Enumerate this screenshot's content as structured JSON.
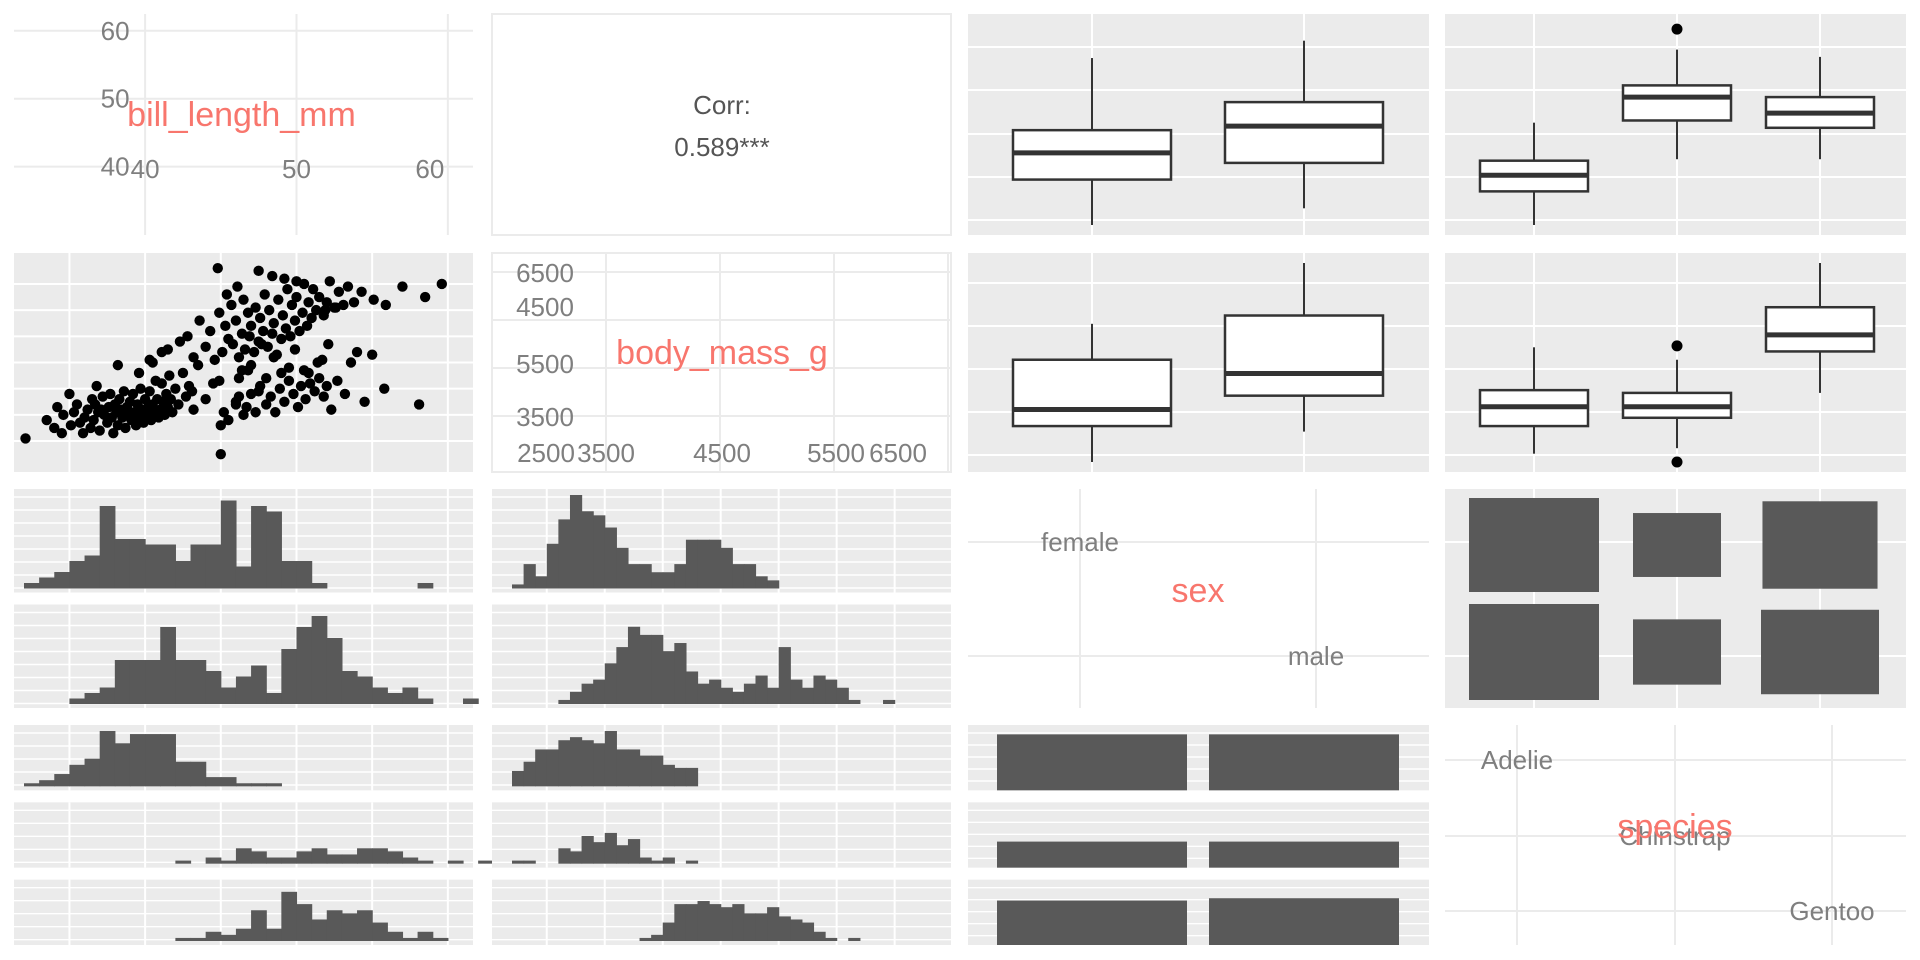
{
  "colors": {
    "panel_bg": "#EBEBEB",
    "grid": "#FFFFFF",
    "diag_bg": "#FFFFFF",
    "diag_grid": "#EBEBEB",
    "diag_label": "#F8766D",
    "tick_text": "#7F7F7F",
    "bar": "#595959",
    "box": "#333333"
  },
  "chart_data": {
    "type": "pairs",
    "variables": [
      "bill_length_mm",
      "body_mass_g",
      "sex",
      "species"
    ],
    "diag_labels": {
      "bill_length_mm": "bill_length_mm",
      "body_mass_g": "body_mass_g",
      "sex": "sex",
      "species": "species"
    },
    "bill_length_axis": {
      "range": [
        32,
        61
      ],
      "left_ticks": [
        "40",
        "50",
        "60"
      ],
      "bottom_ticks": [
        "40",
        "50",
        "60"
      ]
    },
    "body_mass_axis": {
      "range": [
        2500,
        6500
      ],
      "left_ticks": [
        "3500",
        "4500",
        "5500",
        "6500"
      ],
      "bottom_ticks": [
        "2500",
        "3500",
        "4500",
        "5500",
        "6500"
      ]
    },
    "sex_levels": [
      "female",
      "male"
    ],
    "species_levels": [
      "Adelie",
      "Chinstrap",
      "Gentoo"
    ],
    "correlation": {
      "label": "Corr:",
      "value": "0.589***"
    },
    "scatter_points": [
      [
        32.1,
        3050
      ],
      [
        33.5,
        3400
      ],
      [
        34.0,
        3250
      ],
      [
        34.5,
        3150
      ],
      [
        34.6,
        3500
      ],
      [
        35.0,
        3900
      ],
      [
        35.1,
        3300
      ],
      [
        35.3,
        3550
      ],
      [
        35.5,
        3700
      ],
      [
        35.7,
        3350
      ],
      [
        35.9,
        3150
      ],
      [
        36.0,
        3450
      ],
      [
        36.2,
        3600
      ],
      [
        36.4,
        3250
      ],
      [
        36.5,
        3800
      ],
      [
        36.6,
        3400
      ],
      [
        36.7,
        3700
      ],
      [
        36.9,
        3550
      ],
      [
        37.0,
        3200
      ],
      [
        37.1,
        3600
      ],
      [
        37.2,
        3850
      ],
      [
        37.3,
        3500
      ],
      [
        37.5,
        3350
      ],
      [
        37.6,
        3650
      ],
      [
        37.7,
        3900
      ],
      [
        37.8,
        3450
      ],
      [
        37.9,
        3150
      ],
      [
        38.0,
        3700
      ],
      [
        38.1,
        3550
      ],
      [
        38.2,
        3300
      ],
      [
        38.3,
        3800
      ],
      [
        38.4,
        3600
      ],
      [
        38.5,
        3450
      ],
      [
        38.6,
        3950
      ],
      [
        38.7,
        3250
      ],
      [
        38.8,
        3650
      ],
      [
        38.9,
        3500
      ],
      [
        39.0,
        3750
      ],
      [
        39.1,
        3400
      ],
      [
        39.2,
        3900
      ],
      [
        39.3,
        3550
      ],
      [
        39.4,
        3300
      ],
      [
        39.5,
        3700
      ],
      [
        39.6,
        3450
      ],
      [
        39.7,
        4000
      ],
      [
        39.8,
        3600
      ],
      [
        39.9,
        3350
      ],
      [
        40.0,
        3800
      ],
      [
        40.1,
        3500
      ],
      [
        40.2,
        3650
      ],
      [
        40.3,
        3950
      ],
      [
        40.4,
        3400
      ],
      [
        40.5,
        3700
      ],
      [
        40.6,
        3550
      ],
      [
        40.7,
        4150
      ],
      [
        40.8,
        3800
      ],
      [
        40.9,
        3450
      ],
      [
        41.0,
        3600
      ],
      [
        41.1,
        4100
      ],
      [
        41.2,
        3750
      ],
      [
        41.3,
        3500
      ],
      [
        41.4,
        3900
      ],
      [
        41.5,
        3650
      ],
      [
        41.6,
        4250
      ],
      [
        41.7,
        3800
      ],
      [
        41.8,
        3550
      ],
      [
        42.0,
        4000
      ],
      [
        42.2,
        3700
      ],
      [
        42.5,
        4300
      ],
      [
        42.7,
        3850
      ],
      [
        42.9,
        4050
      ],
      [
        43.2,
        3600
      ],
      [
        43.5,
        4450
      ],
      [
        34.2,
        3650
      ],
      [
        36.8,
        4050
      ],
      [
        39.6,
        4300
      ],
      [
        38.2,
        4450
      ],
      [
        40.3,
        4550
      ],
      [
        41.1,
        4700
      ],
      [
        45.0,
        3300
      ],
      [
        43.1,
        3950
      ],
      [
        44.0,
        3800
      ],
      [
        45.2,
        3550
      ],
      [
        45.5,
        3400
      ],
      [
        46.0,
        3700
      ],
      [
        46.2,
        3850
      ],
      [
        46.5,
        3500
      ],
      [
        46.7,
        3650
      ],
      [
        47.0,
        3900
      ],
      [
        47.3,
        3550
      ],
      [
        47.6,
        4050
      ],
      [
        48.0,
        3700
      ],
      [
        48.3,
        3850
      ],
      [
        48.6,
        3550
      ],
      [
        48.9,
        4000
      ],
      [
        49.2,
        3750
      ],
      [
        49.5,
        4150
      ],
      [
        49.8,
        3900
      ],
      [
        50.1,
        3650
      ],
      [
        50.3,
        4050
      ],
      [
        50.6,
        3800
      ],
      [
        50.9,
        4100
      ],
      [
        51.2,
        3950
      ],
      [
        51.5,
        4200
      ],
      [
        51.8,
        3850
      ],
      [
        52.0,
        4050
      ],
      [
        52.3,
        3600
      ],
      [
        52.7,
        4150
      ],
      [
        53.2,
        3900
      ],
      [
        54.5,
        3750
      ],
      [
        55.8,
        4000
      ],
      [
        58.1,
        3700
      ],
      [
        46.0,
        3750
      ],
      [
        47.5,
        3950
      ],
      [
        49.0,
        4300
      ],
      [
        50.5,
        4350
      ],
      [
        48.0,
        4200
      ],
      [
        44.5,
        4100
      ],
      [
        46.8,
        4350
      ],
      [
        51.4,
        4500
      ],
      [
        45.0,
        2750
      ],
      [
        40.5,
        4500
      ],
      [
        41.5,
        4750
      ],
      [
        42.3,
        4900
      ],
      [
        42.8,
        5000
      ],
      [
        43.2,
        4600
      ],
      [
        43.6,
        5300
      ],
      [
        44.0,
        4800
      ],
      [
        44.3,
        5100
      ],
      [
        44.6,
        4550
      ],
      [
        44.9,
        5450
      ],
      [
        45.1,
        4700
      ],
      [
        45.3,
        5200
      ],
      [
        45.5,
        4950
      ],
      [
        45.7,
        5600
      ],
      [
        45.8,
        4850
      ],
      [
        46.0,
        5300
      ],
      [
        46.2,
        4600
      ],
      [
        46.4,
        5050
      ],
      [
        46.5,
        5700
      ],
      [
        46.6,
        4750
      ],
      [
        46.8,
        5450
      ],
      [
        46.9,
        5000
      ],
      [
        47.0,
        5200
      ],
      [
        47.2,
        4700
      ],
      [
        47.3,
        5550
      ],
      [
        47.5,
        4900
      ],
      [
        47.6,
        5350
      ],
      [
        47.8,
        5100
      ],
      [
        47.9,
        5800
      ],
      [
        48.1,
        4800
      ],
      [
        48.2,
        5500
      ],
      [
        48.4,
        5050
      ],
      [
        48.5,
        5250
      ],
      [
        48.7,
        4650
      ],
      [
        48.8,
        5700
      ],
      [
        49.0,
        4950
      ],
      [
        49.1,
        5400
      ],
      [
        49.3,
        5150
      ],
      [
        49.4,
        5900
      ],
      [
        49.6,
        5000
      ],
      [
        49.7,
        5600
      ],
      [
        49.9,
        5300
      ],
      [
        50.0,
        5750
      ],
      [
        50.2,
        5100
      ],
      [
        50.4,
        5450
      ],
      [
        50.5,
        6000
      ],
      [
        50.7,
        5200
      ],
      [
        50.8,
        5650
      ],
      [
        51.0,
        5350
      ],
      [
        51.1,
        5900
      ],
      [
        51.3,
        5500
      ],
      [
        51.5,
        5750
      ],
      [
        51.8,
        5400
      ],
      [
        52.0,
        5650
      ],
      [
        52.2,
        6050
      ],
      [
        52.5,
        5550
      ],
      [
        52.8,
        5850
      ],
      [
        53.1,
        5600
      ],
      [
        53.4,
        5950
      ],
      [
        53.8,
        5650
      ],
      [
        54.3,
        5850
      ],
      [
        55.1,
        5700
      ],
      [
        55.9,
        5600
      ],
      [
        57.0,
        5950
      ],
      [
        58.5,
        5750
      ],
      [
        59.6,
        6000
      ],
      [
        44.8,
        6300
      ],
      [
        47.5,
        6250
      ],
      [
        48.4,
        6150
      ],
      [
        49.2,
        6100
      ],
      [
        50.0,
        6050
      ],
      [
        52.6,
        5550
      ],
      [
        51.9,
        5500
      ],
      [
        45.4,
        5800
      ],
      [
        46.1,
        5950
      ],
      [
        54.0,
        4700
      ],
      [
        55.0,
        4650
      ],
      [
        49.5,
        4400
      ],
      [
        48.5,
        4600
      ],
      [
        47.0,
        4450
      ],
      [
        46.4,
        4350
      ],
      [
        51.7,
        4550
      ],
      [
        53.6,
        4500
      ],
      [
        50.8,
        4300
      ],
      [
        52.1,
        4850
      ],
      [
        49.9,
        4750
      ],
      [
        47.7,
        4850
      ],
      [
        46.2,
        4200
      ],
      [
        44.9,
        4150
      ]
    ],
    "box_bill_by_sex": [
      {
        "group": "female",
        "whisker_low": 32,
        "q1": 38.8,
        "median": 42.8,
        "q3": 46.2,
        "whisker_high": 57
      },
      {
        "group": "male",
        "whisker_low": 34.5,
        "q1": 41.3,
        "median": 46.8,
        "q3": 50.4,
        "whisker_high": 59.6
      }
    ],
    "box_bill_by_species": [
      {
        "group": "Adelie",
        "whisker_low": 32,
        "q1": 36.6,
        "median": 38.8,
        "q3": 40.8,
        "whisker_high": 46,
        "outliers": []
      },
      {
        "group": "Chinstrap",
        "whisker_low": 41,
        "q1": 46.3,
        "median": 49.5,
        "q3": 51.1,
        "whisker_high": 56,
        "outliers": [
          58.8
        ]
      },
      {
        "group": "Gentoo",
        "whisker_low": 41,
        "q1": 45.3,
        "median": 47.3,
        "q3": 49.5,
        "whisker_high": 55,
        "outliers": []
      }
    ],
    "box_mass_by_sex": [
      {
        "group": "female",
        "whisker_low": 2700,
        "q1": 3350,
        "median": 3650,
        "q3": 4550,
        "whisker_high": 5200
      },
      {
        "group": "male",
        "whisker_low": 3250,
        "q1": 3900,
        "median": 4300,
        "q3": 5350,
        "whisker_high": 6300
      }
    ],
    "box_mass_by_species": [
      {
        "group": "Adelie",
        "whisker_low": 2850,
        "q1": 3350,
        "median": 3700,
        "q3": 4000,
        "whisker_high": 4775,
        "outliers": []
      },
      {
        "group": "Chinstrap",
        "whisker_low": 2950,
        "q1": 3500,
        "median": 3700,
        "q3": 3950,
        "whisker_high": 4550,
        "outliers": [
          4800,
          2700
        ]
      },
      {
        "group": "Gentoo",
        "whisker_low": 3950,
        "q1": 4700,
        "median": 5000,
        "q3": 5500,
        "whisker_high": 6300,
        "outliers": []
      }
    ],
    "hist_bill_by_sex": {
      "bins_from": 32,
      "bin_width": 1,
      "female": [
        1,
        2,
        3,
        5,
        6,
        15,
        9,
        9,
        8,
        8,
        5,
        8,
        8,
        16,
        4,
        15,
        14,
        5,
        5,
        1,
        0,
        0,
        0,
        0,
        0,
        0,
        1,
        0,
        0
      ],
      "male": [
        0,
        0,
        0,
        1,
        2,
        3,
        8,
        8,
        8,
        14,
        8,
        8,
        6,
        3,
        5,
        7,
        2,
        10,
        14,
        16,
        12,
        6,
        5,
        3,
        2,
        3,
        1,
        0,
        0,
        1
      ]
    },
    "hist_mass_by_sex": {
      "bins_from": 2700,
      "bin_width": 100,
      "female": [
        1,
        6,
        3,
        11,
        17,
        23,
        19,
        18,
        15,
        10,
        6,
        6,
        4,
        4,
        6,
        12,
        12,
        12,
        10,
        6,
        6,
        3,
        2
      ],
      "male": [
        0,
        0,
        0,
        0,
        1,
        3,
        5,
        6,
        10,
        14,
        19,
        17,
        17,
        13,
        15,
        8,
        5,
        6,
        4,
        3,
        5,
        7,
        4,
        14,
        6,
        4,
        7,
        6,
        4,
        1,
        0,
        0,
        1
      ]
    },
    "hist_bill_by_species": {
      "bins_from": 32,
      "bin_width": 1,
      "Adelie": [
        1,
        2,
        4,
        7,
        9,
        18,
        14,
        17,
        17,
        17,
        8,
        8,
        3,
        3,
        1,
        1,
        1,
        0,
        0,
        0,
        0,
        0,
        0,
        0,
        0,
        0,
        0,
        0,
        0
      ],
      "Chinstrap": [
        0,
        0,
        0,
        0,
        0,
        0,
        0,
        0,
        0,
        0,
        1,
        0,
        2,
        1,
        5,
        4,
        2,
        2,
        4,
        5,
        3,
        3,
        5,
        5,
        4,
        2,
        1,
        0,
        1,
        0,
        1
      ],
      "Gentoo": [
        0,
        0,
        0,
        0,
        0,
        0,
        0,
        0,
        0,
        0,
        1,
        1,
        3,
        2,
        4,
        10,
        4,
        16,
        12,
        7,
        10,
        9,
        10,
        6,
        3,
        1,
        3,
        1,
        0,
        0,
        0,
        0,
        1
      ]
    },
    "hist_mass_by_species": {
      "bins_from": 2700,
      "bin_width": 100,
      "Adelie": [
        5,
        8,
        12,
        12,
        15,
        16,
        15,
        14,
        18,
        12,
        12,
        10,
        10,
        7,
        6,
        6
      ],
      "Chinstrap": [
        1,
        1,
        0,
        0,
        5,
        4,
        9,
        7,
        10,
        6,
        8,
        2,
        1,
        2,
        0,
        1
      ],
      "Gentoo": [
        0,
        0,
        0,
        0,
        0,
        0,
        0,
        0,
        0,
        0,
        0,
        1,
        2,
        6,
        12,
        12,
        13,
        12,
        11,
        12,
        9,
        9,
        11,
        8,
        7,
        6,
        3,
        1,
        0,
        1
      ]
    },
    "counts_sex_by_species": {
      "female": {
        "Adelie": 73,
        "Chinstrap": 34,
        "Gentoo": 58
      },
      "male": {
        "Adelie": 73,
        "Chinstrap": 34,
        "Gentoo": 61
      }
    },
    "grid": true
  }
}
